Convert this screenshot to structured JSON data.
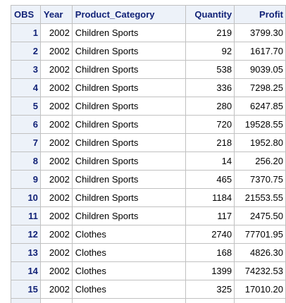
{
  "columns": {
    "obs": "OBS",
    "year": "Year",
    "product_category": "Product_Category",
    "quantity": "Quantity",
    "profit": "Profit"
  },
  "rows": [
    {
      "obs": "1",
      "year": "2002",
      "product_category": "Children Sports",
      "quantity": "219",
      "profit": "3799.30"
    },
    {
      "obs": "2",
      "year": "2002",
      "product_category": "Children Sports",
      "quantity": "92",
      "profit": "1617.70"
    },
    {
      "obs": "3",
      "year": "2002",
      "product_category": "Children Sports",
      "quantity": "538",
      "profit": "9039.05"
    },
    {
      "obs": "4",
      "year": "2002",
      "product_category": "Children Sports",
      "quantity": "336",
      "profit": "7298.25"
    },
    {
      "obs": "5",
      "year": "2002",
      "product_category": "Children Sports",
      "quantity": "280",
      "profit": "6247.85"
    },
    {
      "obs": "6",
      "year": "2002",
      "product_category": "Children Sports",
      "quantity": "720",
      "profit": "19528.55"
    },
    {
      "obs": "7",
      "year": "2002",
      "product_category": "Children Sports",
      "quantity": "218",
      "profit": "1952.80"
    },
    {
      "obs": "8",
      "year": "2002",
      "product_category": "Children Sports",
      "quantity": "14",
      "profit": "256.20"
    },
    {
      "obs": "9",
      "year": "2002",
      "product_category": "Children Sports",
      "quantity": "465",
      "profit": "7370.75"
    },
    {
      "obs": "10",
      "year": "2002",
      "product_category": "Children Sports",
      "quantity": "1184",
      "profit": "21553.55"
    },
    {
      "obs": "11",
      "year": "2002",
      "product_category": "Children Sports",
      "quantity": "117",
      "profit": "2475.50"
    },
    {
      "obs": "12",
      "year": "2002",
      "product_category": "Clothes",
      "quantity": "2740",
      "profit": "77701.95"
    },
    {
      "obs": "13",
      "year": "2002",
      "product_category": "Clothes",
      "quantity": "168",
      "profit": "4826.30"
    },
    {
      "obs": "14",
      "year": "2002",
      "product_category": "Clothes",
      "quantity": "1399",
      "profit": "74232.53"
    },
    {
      "obs": "15",
      "year": "2002",
      "product_category": "Clothes",
      "quantity": "325",
      "profit": "17010.20"
    }
  ]
}
